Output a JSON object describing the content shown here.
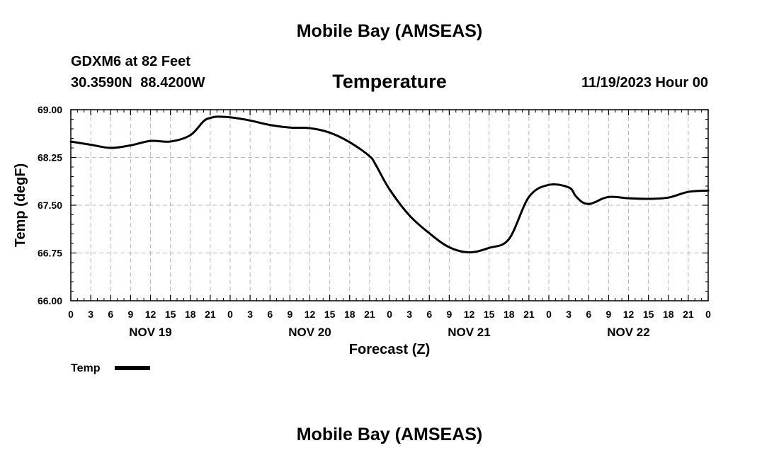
{
  "header": {
    "title": "Mobile Bay (AMSEAS)",
    "station": "GDXM6 at 82 Feet",
    "coordinates": "30.3590N 88.4200W",
    "variable": "Temperature",
    "datetime": "11/19/2023 Hour 00"
  },
  "footer": {
    "title": "Mobile Bay (AMSEAS)"
  },
  "legend": {
    "label": "Temp",
    "color": "#000000"
  },
  "chart_data": {
    "type": "line",
    "title": "Temperature",
    "xlabel": "Forecast (Z)",
    "ylabel": "Temp (degF)",
    "ylim": [
      66.0,
      69.0
    ],
    "xlim": [
      0,
      96
    ],
    "x_unit": "hours since 11/19/2023 00Z",
    "yticks": [
      66.0,
      66.75,
      67.5,
      68.25,
      69.0
    ],
    "ytick_labels": [
      "66.00",
      "66.75",
      "67.50",
      "68.25",
      "69.00"
    ],
    "xticks": [
      0,
      3,
      6,
      9,
      12,
      15,
      18,
      21,
      24,
      27,
      30,
      33,
      36,
      39,
      42,
      45,
      48,
      51,
      54,
      57,
      60,
      63,
      66,
      69,
      72,
      75,
      78,
      81,
      84,
      87,
      90,
      93,
      96
    ],
    "xtick_labels": [
      "0",
      "3",
      "6",
      "9",
      "12",
      "15",
      "18",
      "21",
      "0",
      "3",
      "6",
      "9",
      "12",
      "15",
      "18",
      "21",
      "0",
      "3",
      "6",
      "9",
      "12",
      "15",
      "18",
      "21",
      "0",
      "3",
      "6",
      "9",
      "12",
      "15",
      "18",
      "21",
      "0"
    ],
    "day_labels": [
      {
        "label": "NOV 19",
        "x": 12
      },
      {
        "label": "NOV 20",
        "x": 36
      },
      {
        "label": "NOV 21",
        "x": 60
      },
      {
        "label": "NOV 22",
        "x": 84
      }
    ],
    "grid": true,
    "series": [
      {
        "name": "Temp",
        "x": [
          0,
          3,
          6,
          9,
          12,
          15,
          18,
          20,
          21,
          22,
          24,
          27,
          30,
          33,
          36,
          39,
          42,
          45,
          46,
          48,
          51,
          54,
          57,
          60,
          63,
          66,
          69,
          72,
          75,
          76,
          77,
          78,
          79,
          80,
          81,
          82,
          84,
          87,
          90,
          93,
          96
        ],
        "y": [
          68.5,
          68.45,
          68.4,
          68.44,
          68.51,
          68.5,
          68.6,
          68.82,
          68.87,
          68.89,
          68.88,
          68.83,
          68.76,
          68.72,
          68.71,
          68.64,
          68.49,
          68.27,
          68.12,
          67.75,
          67.34,
          67.06,
          66.84,
          66.76,
          66.83,
          66.97,
          67.63,
          67.82,
          67.78,
          67.65,
          67.55,
          67.52,
          67.55,
          67.6,
          67.63,
          67.63,
          67.61,
          67.6,
          67.62,
          67.71,
          67.73
        ]
      }
    ]
  }
}
